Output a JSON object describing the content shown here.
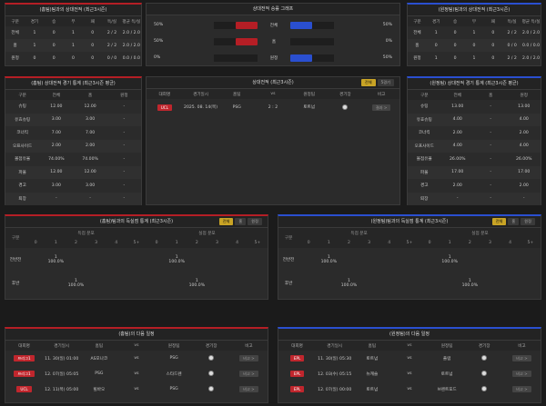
{
  "p1": {
    "title": "(홈팀)팀과의 상대전적 (최근3시즌)",
    "head": [
      "구분",
      "경기",
      "승",
      "무",
      "패",
      "득/실",
      "평균 득/실"
    ],
    "rows": [
      [
        "전체",
        "1",
        "0",
        "1",
        "0",
        "2 / 2",
        "2.0 / 2.0"
      ],
      [
        "홈",
        "1",
        "0",
        "1",
        "0",
        "2 / 2",
        "2.0 / 2.0"
      ],
      [
        "원정",
        "0",
        "0",
        "0",
        "0",
        "0 / 0",
        "0.0 / 0.0"
      ]
    ]
  },
  "p2": {
    "title": "(원정팀)팀과의 상대전적 (최근3시즌)",
    "head": [
      "구분",
      "경기",
      "승",
      "무",
      "패",
      "득/실",
      "평균 득/실"
    ],
    "rows": [
      [
        "전체",
        "1",
        "0",
        "1",
        "0",
        "2 / 2",
        "2.0 / 2.0"
      ],
      [
        "홈",
        "0",
        "0",
        "0",
        "0",
        "0 / 0",
        "0.0 / 0.0"
      ],
      [
        "원정",
        "1",
        "0",
        "1",
        "0",
        "2 / 2",
        "2.0 / 2.0"
      ]
    ]
  },
  "graph": {
    "title": "상대전적 승률 그래프",
    "rows": [
      {
        "lp": "50%",
        "label": "전체",
        "rp": "50%",
        "l": 0.5,
        "r": 0.5
      },
      {
        "lp": "50%",
        "label": "홈",
        "rp": "0%",
        "l": 0.5,
        "r": 0
      },
      {
        "lp": "0%",
        "label": "원정",
        "rp": "50%",
        "l": 0,
        "r": 0.5
      }
    ]
  },
  "s1": {
    "title": "(홈팀) 상대전적 경기 통계 (최근3시즌 평균)",
    "head": [
      "구분",
      "전체",
      "홈",
      "원정"
    ],
    "rows": [
      [
        "슈팅",
        "12.00",
        "12.00",
        "-"
      ],
      [
        "유효슈팅",
        "3.00",
        "3.00",
        "-"
      ],
      [
        "코너킥",
        "7.00",
        "7.00",
        "-"
      ],
      [
        "오프사이드",
        "2.00",
        "2.00",
        "-"
      ],
      [
        "볼점유율",
        "74.00%",
        "74.00%",
        "-"
      ],
      [
        "파울",
        "12.00",
        "12.00",
        "-"
      ],
      [
        "경고",
        "3.00",
        "3.00",
        "-"
      ],
      [
        "퇴장",
        "-",
        "-",
        "-"
      ]
    ]
  },
  "s2": {
    "title": "(원정팀) 상대전적 경기 통계 (최근3시즌 평균)",
    "head": [
      "구분",
      "전체",
      "홈",
      "원정"
    ],
    "rows": [
      [
        "슈팅",
        "13.00",
        "-",
        "13.00"
      ],
      [
        "유효슈팅",
        "4.00",
        "-",
        "4.00"
      ],
      [
        "코너킥",
        "2.00",
        "-",
        "2.00"
      ],
      [
        "오프사이드",
        "4.00",
        "-",
        "4.00"
      ],
      [
        "볼점유율",
        "26.00%",
        "-",
        "26.00%"
      ],
      [
        "파울",
        "17.00",
        "-",
        "17.00"
      ],
      [
        "경고",
        "2.00",
        "-",
        "2.00"
      ],
      [
        "퇴장",
        "-",
        "-",
        "-"
      ]
    ]
  },
  "mid": {
    "title": "상대전적 (최근3시즌)",
    "tabs": [
      "전체",
      "5경기"
    ],
    "head": [
      "대회명",
      "경기일시",
      "홈팀",
      "vs",
      "원정팀",
      "경기장",
      "비고"
    ],
    "rows": [
      {
        "comp": "UCL",
        "date": "2025. 08. 14(목)",
        "home": "PSG",
        "vs": "2 : 2",
        "away": "토트넘",
        "btn": "결과 >"
      }
    ]
  },
  "ot": [
    {
      "title": "(홈팀)팀과의 득실점 통계 (최근3시즌)",
      "tabs": [
        "전체",
        "홈",
        "원정"
      ],
      "g1": "득점 분포",
      "g2": "실점 분포",
      "cols": [
        "0",
        "1",
        "2",
        "3",
        "4",
        "5+"
      ],
      "rows": [
        {
          "label": "전반전",
          "g": [
            "",
            "1\n100.0%",
            "",
            "",
            "",
            ""
          ],
          "c": [
            "",
            "1\n100.0%",
            "",
            "",
            "",
            ""
          ]
        },
        {
          "label": "후반",
          "g": [
            "",
            "",
            "1\n100.0%",
            "",
            "",
            ""
          ],
          "c": [
            "",
            "",
            "1\n100.0%",
            "",
            "",
            ""
          ]
        }
      ]
    },
    {
      "title": "(원정팀)팀과의 득실점 통계 (최근3시즌)",
      "tabs": [
        "전체",
        "홈",
        "원정"
      ],
      "g1": "득점 분포",
      "g2": "실점 분포",
      "cols": [
        "0",
        "1",
        "2",
        "3",
        "4",
        "5+"
      ],
      "rows": [
        {
          "label": "전반전",
          "g": [
            "",
            "1\n100.0%",
            "",
            "",
            "",
            ""
          ],
          "c": [
            "",
            "1\n100.0%",
            "",
            "",
            "",
            ""
          ]
        },
        {
          "label": "후반",
          "g": [
            "",
            "",
            "1\n100.0%",
            "",
            "",
            ""
          ],
          "c": [
            "",
            "",
            "1\n100.0%",
            "",
            "",
            ""
          ]
        }
      ]
    }
  ],
  "nx": [
    {
      "title": "(홈팀)의 다음 일정",
      "head": [
        "대회명",
        "경기일시",
        "홈팀",
        "vs",
        "원정팀",
        "경기장",
        "비고"
      ],
      "rows": [
        {
          "comp": "프리그1",
          "date": "11. 30(일) 01:00",
          "home": "AS모나코",
          "vs": "vs",
          "away": "PSG",
          "btn": "비고 >"
        },
        {
          "comp": "프리그1",
          "date": "12. 07(일) 05:05",
          "home": "PSG",
          "vs": "vs",
          "away": "스타드렌",
          "btn": "비고 >"
        },
        {
          "comp": "UCL",
          "date": "12. 11(목) 05:00",
          "home": "빌바오",
          "vs": "vs",
          "away": "PSG",
          "btn": "비고 >"
        }
      ]
    },
    {
      "title": "(원정팀)의 다음 일정",
      "head": [
        "대회명",
        "경기일시",
        "홈팀",
        "vs",
        "원정팀",
        "경기장",
        "비고"
      ],
      "rows": [
        {
          "comp": "EPL",
          "date": "11. 30(일) 05:30",
          "home": "토트넘",
          "vs": "vs",
          "away": "풀럼",
          "btn": "비고 >"
        },
        {
          "comp": "EPL",
          "date": "12. 03(수) 05:15",
          "home": "뉴캐슬",
          "vs": "vs",
          "away": "토트넘",
          "btn": "비고 >"
        },
        {
          "comp": "EPL",
          "date": "12. 07(일) 00:00",
          "home": "토트넘",
          "vs": "vs",
          "away": "브렌트포드",
          "btn": "비고 >"
        }
      ]
    }
  ]
}
